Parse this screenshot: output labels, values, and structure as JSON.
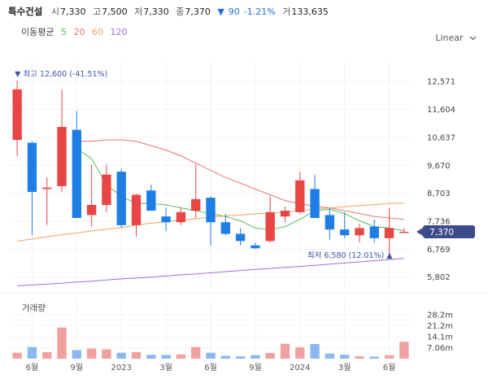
{
  "header": {
    "name": "특수건설",
    "open_label": "시",
    "open": "7,330",
    "high_label": "고",
    "high": "7,500",
    "low_label": "저",
    "low": "7,330",
    "close_label": "종",
    "close": "7,370",
    "change_arrow": "▼",
    "change": "90",
    "change_pct": "-1.21%",
    "volume_label": "거",
    "volume": "133,635"
  },
  "ma_legend": {
    "title": "이동평균",
    "periods": [
      "5",
      "20",
      "60",
      "120"
    ],
    "colors": [
      "#5cb85c",
      "#e8736f",
      "#f0a35e",
      "#9b6fd6"
    ]
  },
  "scale_select": {
    "label": "Linear",
    "icon": "chevron-down-icon"
  },
  "colors": {
    "up": "#e84545",
    "down": "#1e7ee6",
    "up_vol": "#f1a0a0",
    "down_vol": "#8ab8ef",
    "last_badge": "#3d4b8a"
  },
  "chart_data": {
    "type": "candlestick",
    "period": "monthly",
    "price_axis": {
      "ylim": [
        5400,
        13000
      ],
      "ticks": [
        12571,
        11604,
        10637,
        9670,
        8703,
        7736,
        6769,
        5802
      ],
      "tick_labels": [
        "12,571",
        "11,604",
        "10,637",
        "9,670",
        "8,703",
        "7,736",
        "6,769",
        "5,802"
      ]
    },
    "x_ticks": [
      "6월",
      "9월",
      "2023",
      "3월",
      "6월",
      "9월",
      "2024",
      "3월",
      "6월"
    ],
    "x_tick_index": [
      1,
      4,
      7,
      10,
      13,
      16,
      19,
      22,
      25
    ],
    "candles": [
      {
        "o": 10550,
        "h": 12600,
        "l": 10000,
        "c": 12300
      },
      {
        "o": 10450,
        "h": 10500,
        "l": 7250,
        "c": 8750
      },
      {
        "o": 8850,
        "h": 9250,
        "l": 7600,
        "c": 8900
      },
      {
        "o": 8950,
        "h": 12300,
        "l": 8750,
        "c": 11000
      },
      {
        "o": 10900,
        "h": 11550,
        "l": 7900,
        "c": 7850
      },
      {
        "o": 7950,
        "h": 9700,
        "l": 7550,
        "c": 8300
      },
      {
        "o": 8300,
        "h": 9700,
        "l": 8050,
        "c": 9350
      },
      {
        "o": 9450,
        "h": 9550,
        "l": 7500,
        "c": 7600
      },
      {
        "o": 7600,
        "h": 8700,
        "l": 7200,
        "c": 8650
      },
      {
        "o": 8800,
        "h": 9000,
        "l": 8100,
        "c": 8100
      },
      {
        "o": 7900,
        "h": 8200,
        "l": 7400,
        "c": 7700
      },
      {
        "o": 7700,
        "h": 8200,
        "l": 7600,
        "c": 8050
      },
      {
        "o": 8100,
        "h": 9700,
        "l": 7850,
        "c": 8500
      },
      {
        "o": 8550,
        "h": 8600,
        "l": 6900,
        "c": 7700
      },
      {
        "o": 7700,
        "h": 8000,
        "l": 7250,
        "c": 7300
      },
      {
        "o": 7300,
        "h": 7500,
        "l": 6900,
        "c": 7050
      },
      {
        "o": 6900,
        "h": 7000,
        "l": 6780,
        "c": 6800
      },
      {
        "o": 7050,
        "h": 8600,
        "l": 7000,
        "c": 8050
      },
      {
        "o": 7900,
        "h": 8250,
        "l": 7700,
        "c": 8100
      },
      {
        "o": 8050,
        "h": 9450,
        "l": 8000,
        "c": 9150
      },
      {
        "o": 8850,
        "h": 9350,
        "l": 7900,
        "c": 7850
      },
      {
        "o": 7950,
        "h": 8200,
        "l": 7100,
        "c": 7450
      },
      {
        "o": 7450,
        "h": 8050,
        "l": 7150,
        "c": 7250
      },
      {
        "o": 7250,
        "h": 7650,
        "l": 7000,
        "c": 7500
      },
      {
        "o": 7550,
        "h": 7800,
        "l": 7000,
        "c": 7150
      },
      {
        "o": 7150,
        "h": 8200,
        "l": 6580,
        "c": 7500
      },
      {
        "o": 7330,
        "h": 7500,
        "l": 7330,
        "c": 7370
      }
    ],
    "ma": [
      {
        "period": 5,
        "color": "#5cb85c",
        "values": [
          null,
          null,
          null,
          null,
          10250,
          9900,
          9000,
          8600,
          8350,
          8350,
          8300,
          8200,
          8100,
          8000,
          7900,
          7750,
          7500,
          7450,
          7550,
          7800,
          8100,
          8150,
          8000,
          7750,
          7550,
          7500,
          7400
        ]
      },
      {
        "period": 20,
        "color": "#e8736f",
        "values": [
          null,
          null,
          null,
          null,
          10500,
          10500,
          10550,
          10550,
          10500,
          10350,
          10200,
          10000,
          9750,
          9500,
          9250,
          9050,
          8850,
          8650,
          8450,
          8350,
          8250,
          8200,
          8100,
          8000,
          7900,
          7850,
          7800
        ]
      },
      {
        "period": 60,
        "color": "#f0a35e",
        "values": [
          7050,
          7120,
          7200,
          7270,
          7330,
          7400,
          7460,
          7520,
          7600,
          7670,
          7720,
          7770,
          7820,
          7870,
          7920,
          7950,
          7990,
          8020,
          8060,
          8100,
          8150,
          8200,
          8240,
          8280,
          8310,
          8350,
          8370
        ]
      },
      {
        "period": 120,
        "color": "#9b6fd6",
        "values": [
          5500,
          5530,
          5560,
          5590,
          5630,
          5660,
          5700,
          5740,
          5770,
          5800,
          5840,
          5880,
          5910,
          5950,
          5990,
          6030,
          6070,
          6100,
          6140,
          6170,
          6210,
          6250,
          6290,
          6330,
          6370,
          6410,
          6450
        ]
      }
    ],
    "high_annotation": {
      "label": "최고",
      "value": "12,600",
      "pct": "(-41.51%)",
      "arrow": "▼"
    },
    "low_annotation": {
      "label": "최저",
      "value": "6,580",
      "pct": "(12.01%)",
      "arrow": "▲"
    },
    "last_price": {
      "value": 7370,
      "label": "7,370"
    },
    "volume_title": "거래량",
    "volume_axis": {
      "ylim": [
        0,
        36000000
      ],
      "ticks": [
        28200000,
        21200000,
        14100000,
        7060000
      ],
      "tick_labels": [
        "28.2m",
        "21.2m",
        "14.1m",
        "7.06m"
      ]
    },
    "volumes": [
      3800000,
      7500000,
      4200000,
      20000000,
      5500000,
      6500000,
      6000000,
      3800000,
      4200000,
      2500000,
      2400000,
      2700000,
      7500000,
      3800000,
      1800000,
      1500000,
      2300000,
      3700000,
      9500000,
      7300000,
      9400000,
      3200000,
      2500000,
      1500000,
      1300000,
      2200000,
      10800000
    ]
  }
}
